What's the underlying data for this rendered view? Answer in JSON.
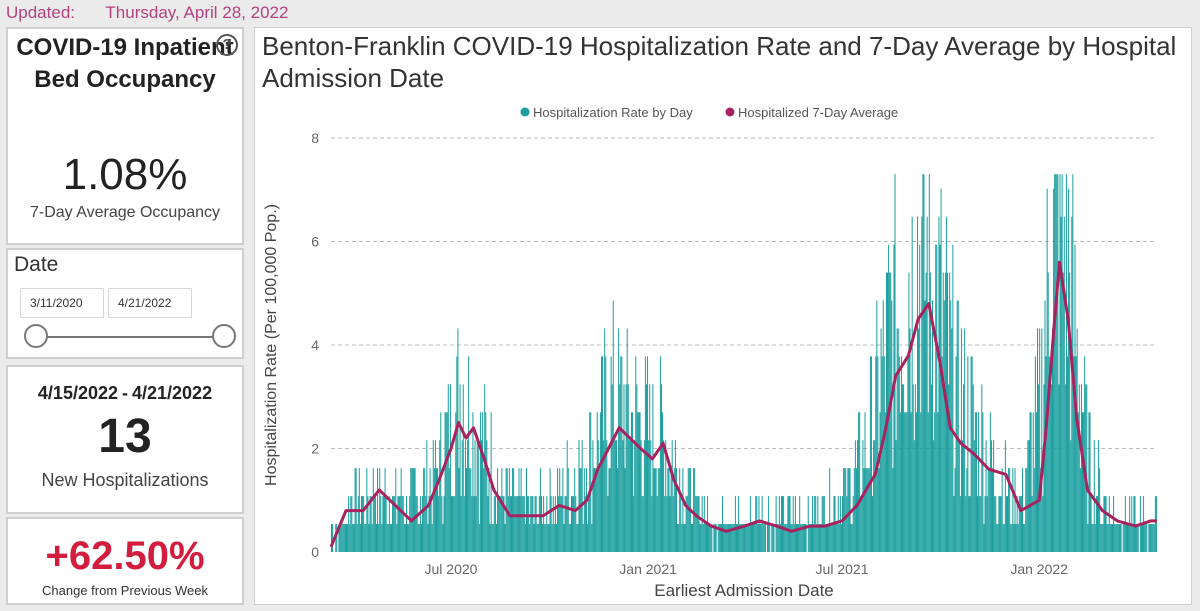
{
  "header": {
    "updated_label": "Updated:",
    "updated_date": "Thursday, April 28, 2022"
  },
  "occupancy_card": {
    "title": "COVID-19 Inpatient Bed Occupancy",
    "help_icon": "question-circle-icon",
    "value": "1.08%",
    "label": "7-Day Average Occupancy"
  },
  "date_slicer": {
    "title": "Date",
    "start": "3/11/2020",
    "end": "4/21/2022"
  },
  "new_hosp_card": {
    "range_start": "4/15/2022",
    "range_sep": "-",
    "range_end": "4/21/2022",
    "value": "13",
    "label": "New Hospitalizations"
  },
  "change_card": {
    "value": "+62.50%",
    "label": "Change from Previous Week",
    "color": "#d21d3f"
  },
  "chart": {
    "title": "Benton-Franklin COVID-19 Hospitalization Rate and 7-Day Average by Hospital Admission Date",
    "colors": {
      "bars": "#1a9e9e",
      "line": "#a7235f"
    }
  },
  "chart_data": {
    "type": "bar",
    "title": "Benton-Franklin COVID-19 Hospitalization Rate and 7-Day Average by Hospital Admission Date",
    "xlabel": "Earliest Admission Date",
    "ylabel": "Hospitalization Rate (Per 100,000 Pop.)",
    "ylim": [
      0,
      8
    ],
    "yticks": [
      0,
      2,
      4,
      6,
      8
    ],
    "grid": true,
    "legend_position": "top",
    "x_range": [
      "2020-03-11",
      "2022-04-21"
    ],
    "xticks": [
      {
        "date": "2020-07-01",
        "label": "Jul 2020"
      },
      {
        "date": "2021-01-01",
        "label": "Jan 2021"
      },
      {
        "date": "2021-07-01",
        "label": "Jul 2021"
      },
      {
        "date": "2022-01-01",
        "label": "Jan 2022"
      }
    ],
    "series": [
      {
        "name": "Hospitalization Rate by Day",
        "type": "bar",
        "note_values": "daily values, approximated",
        "x": [
          "2020-03-15",
          "2020-04-01",
          "2020-04-15",
          "2020-05-01",
          "2020-05-15",
          "2020-06-01",
          "2020-06-15",
          "2020-07-01",
          "2020-07-10",
          "2020-07-20",
          "2020-08-01",
          "2020-08-15",
          "2020-09-01",
          "2020-09-15",
          "2020-10-01",
          "2020-10-15",
          "2020-11-01",
          "2020-11-15",
          "2020-12-01",
          "2020-12-15",
          "2021-01-01",
          "2021-01-15",
          "2021-02-01",
          "2021-02-15",
          "2021-03-01",
          "2021-03-15",
          "2021-04-01",
          "2021-04-15",
          "2021-05-01",
          "2021-05-15",
          "2021-06-01",
          "2021-06-15",
          "2021-07-01",
          "2021-07-15",
          "2021-08-01",
          "2021-08-15",
          "2021-09-01",
          "2021-09-15",
          "2021-10-01",
          "2021-10-15",
          "2021-11-01",
          "2021-11-15",
          "2021-12-01",
          "2021-12-15",
          "2022-01-01",
          "2022-01-10",
          "2022-01-20",
          "2022-02-01",
          "2022-02-15",
          "2022-03-01",
          "2022-03-15",
          "2022-04-01",
          "2022-04-15",
          "2022-04-21"
        ],
        "values": [
          0.3,
          0.9,
          1.1,
          1.0,
          0.9,
          1.0,
          1.4,
          2.2,
          3.0,
          2.4,
          1.9,
          1.2,
          0.9,
          0.8,
          0.9,
          1.2,
          1.5,
          2.2,
          2.8,
          2.5,
          2.2,
          2.0,
          1.3,
          0.8,
          0.6,
          0.6,
          0.5,
          0.7,
          0.6,
          0.7,
          0.6,
          0.8,
          1.0,
          1.5,
          2.6,
          4.0,
          5.0,
          5.5,
          4.4,
          3.0,
          2.3,
          1.8,
          1.1,
          1.0,
          2.6,
          5.2,
          6.4,
          4.5,
          1.8,
          0.9,
          0.6,
          0.6,
          0.5,
          0.7
        ]
      },
      {
        "name": "Hospitalized 7-Day Average",
        "type": "line",
        "x": [
          "2020-03-11",
          "2020-03-25",
          "2020-04-10",
          "2020-04-25",
          "2020-05-10",
          "2020-05-25",
          "2020-06-10",
          "2020-06-20",
          "2020-07-01",
          "2020-07-08",
          "2020-07-15",
          "2020-07-22",
          "2020-08-01",
          "2020-08-10",
          "2020-08-25",
          "2020-09-10",
          "2020-09-25",
          "2020-10-10",
          "2020-10-25",
          "2020-11-05",
          "2020-11-15",
          "2020-11-25",
          "2020-12-05",
          "2020-12-15",
          "2020-12-25",
          "2021-01-05",
          "2021-01-15",
          "2021-01-25",
          "2021-02-05",
          "2021-02-15",
          "2021-03-01",
          "2021-03-15",
          "2021-04-01",
          "2021-04-15",
          "2021-05-01",
          "2021-05-15",
          "2021-06-01",
          "2021-06-15",
          "2021-07-01",
          "2021-07-15",
          "2021-08-01",
          "2021-08-10",
          "2021-08-20",
          "2021-09-01",
          "2021-09-10",
          "2021-09-20",
          "2021-10-01",
          "2021-10-10",
          "2021-10-20",
          "2021-11-01",
          "2021-11-15",
          "2021-12-01",
          "2021-12-15",
          "2022-01-01",
          "2022-01-08",
          "2022-01-15",
          "2022-01-20",
          "2022-01-28",
          "2022-02-05",
          "2022-02-15",
          "2022-03-01",
          "2022-03-15",
          "2022-04-01",
          "2022-04-15",
          "2022-04-21"
        ],
        "values": [
          0.1,
          0.8,
          0.8,
          1.2,
          0.9,
          0.6,
          0.9,
          1.4,
          2.0,
          2.5,
          2.2,
          2.4,
          1.8,
          1.2,
          0.7,
          0.7,
          0.7,
          0.9,
          0.8,
          1.0,
          1.6,
          2.0,
          2.4,
          2.2,
          2.0,
          1.8,
          2.1,
          1.4,
          0.9,
          0.7,
          0.5,
          0.4,
          0.5,
          0.6,
          0.5,
          0.4,
          0.5,
          0.5,
          0.6,
          0.9,
          1.5,
          2.3,
          3.4,
          3.8,
          4.5,
          4.8,
          3.6,
          2.4,
          2.1,
          1.9,
          1.6,
          1.5,
          0.8,
          1.0,
          2.5,
          4.4,
          5.6,
          4.5,
          2.6,
          1.2,
          0.8,
          0.6,
          0.5,
          0.6,
          0.6
        ]
      }
    ]
  }
}
